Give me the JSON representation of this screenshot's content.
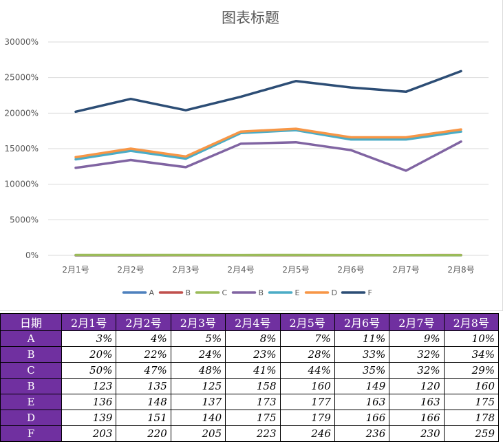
{
  "chart_data": {
    "type": "line",
    "title": "图表标题",
    "categories": [
      "2月1号",
      "2月2号",
      "2月3号",
      "2月4号",
      "2月5号",
      "2月6号",
      "2月7号",
      "2月8号"
    ],
    "y_ticks": [
      "0%",
      "5000%",
      "10000%",
      "15000%",
      "20000%",
      "25000%",
      "30000%"
    ],
    "ylim": [
      0,
      30000
    ],
    "grid": true,
    "legend_position": "bottom",
    "series": [
      {
        "name": "A",
        "color": "#4e81bd",
        "values": [
          3,
          4,
          5,
          8,
          7,
          11,
          9,
          10
        ]
      },
      {
        "name": "B",
        "color": "#c0504d",
        "values": [
          20,
          22,
          24,
          23,
          28,
          33,
          32,
          34
        ]
      },
      {
        "name": "C",
        "color": "#9bbb59",
        "values": [
          50,
          47,
          48,
          41,
          44,
          35,
          32,
          29
        ]
      },
      {
        "name": "B",
        "color": "#8064a2",
        "values": [
          12300,
          13400,
          12400,
          15700,
          15900,
          14800,
          11900,
          16000
        ]
      },
      {
        "name": "E",
        "color": "#4bacc6",
        "values": [
          13500,
          14700,
          13600,
          17200,
          17600,
          16300,
          16300,
          17400
        ]
      },
      {
        "name": "D",
        "color": "#f79646",
        "values": [
          13800,
          15000,
          13900,
          17400,
          17800,
          16600,
          16600,
          17700
        ]
      },
      {
        "name": "F",
        "color": "#2c4d75",
        "values": [
          20200,
          22000,
          20400,
          22300,
          24500,
          23600,
          23000,
          25900
        ]
      }
    ]
  },
  "table": {
    "header_label": "日期",
    "columns": [
      "2月1号",
      "2月2号",
      "2月3号",
      "2月4号",
      "2月5号",
      "2月6号",
      "2月7号",
      "2月8号"
    ],
    "rows": [
      {
        "label": "A",
        "cells": [
          "3%",
          "4%",
          "5%",
          "8%",
          "7%",
          "11%",
          "9%",
          "10%"
        ]
      },
      {
        "label": "B",
        "cells": [
          "20%",
          "22%",
          "24%",
          "23%",
          "28%",
          "33%",
          "32%",
          "34%"
        ]
      },
      {
        "label": "C",
        "cells": [
          "50%",
          "47%",
          "48%",
          "41%",
          "44%",
          "35%",
          "32%",
          "29%"
        ]
      },
      {
        "label": "B",
        "cells": [
          "123",
          "135",
          "125",
          "158",
          "160",
          "149",
          "120",
          "160"
        ]
      },
      {
        "label": "E",
        "cells": [
          "136",
          "148",
          "137",
          "173",
          "177",
          "163",
          "163",
          "175"
        ]
      },
      {
        "label": "D",
        "cells": [
          "139",
          "151",
          "140",
          "175",
          "179",
          "166",
          "166",
          "178"
        ]
      },
      {
        "label": "F",
        "cells": [
          "203",
          "220",
          "205",
          "223",
          "246",
          "236",
          "230",
          "259"
        ]
      }
    ]
  }
}
